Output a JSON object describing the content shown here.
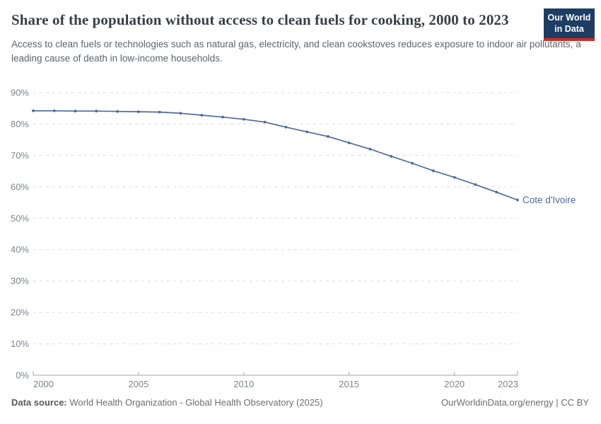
{
  "header": {
    "title": "Share of the population without access to clean fuels for cooking, 2000 to 2023",
    "subtitle": "Access to clean fuels or technologies such as natural gas, electricity, and clean cookstoves reduces exposure to indoor air pollutants, a leading cause of death in low-income households.",
    "logo_line1": "Our World",
    "logo_line2": "in Data"
  },
  "footer": {
    "data_source_label": "Data source:",
    "data_source_value": "World Health Organization - Global Health Observatory (2025)",
    "attribution": "OurWorldinData.org/energy | CC BY"
  },
  "colors": {
    "logo-bg": "#1d3d63",
    "logo-accent": "#cf2d27",
    "grid": "#dcdcdc",
    "axis": "#a5a5a5",
    "tick-label": "#7f858a",
    "title": "#3a3f44",
    "subtitle": "#5e6368",
    "footer": "#6e6e6e"
  },
  "chart_data": {
    "type": "line",
    "title": "Share of the population without access to clean fuels for cooking, 2000 to 2023",
    "xlabel": "",
    "ylabel": "",
    "ylim": [
      0,
      90
    ],
    "y_ticks": [
      0,
      10,
      20,
      30,
      40,
      50,
      60,
      70,
      80,
      90
    ],
    "y_tick_suffix": "%",
    "x_ticks": [
      2000,
      2005,
      2010,
      2015,
      2020,
      2023
    ],
    "grid": "horizontal-dashed",
    "legend_position": "end-of-line-label",
    "series": [
      {
        "name": "Cote d'Ivoire",
        "color": "#4c6a9c",
        "x": [
          2000,
          2001,
          2002,
          2003,
          2004,
          2005,
          2006,
          2007,
          2008,
          2009,
          2010,
          2011,
          2012,
          2013,
          2014,
          2015,
          2016,
          2017,
          2018,
          2019,
          2020,
          2021,
          2022,
          2023
        ],
        "values": [
          84.2,
          84.2,
          84.1,
          84.1,
          84.0,
          83.9,
          83.8,
          83.4,
          82.8,
          82.2,
          81.5,
          80.6,
          79.0,
          77.5,
          76.0,
          74.0,
          72.0,
          69.7,
          67.5,
          65.1,
          63.0,
          60.7,
          58.3,
          55.8
        ]
      }
    ]
  }
}
